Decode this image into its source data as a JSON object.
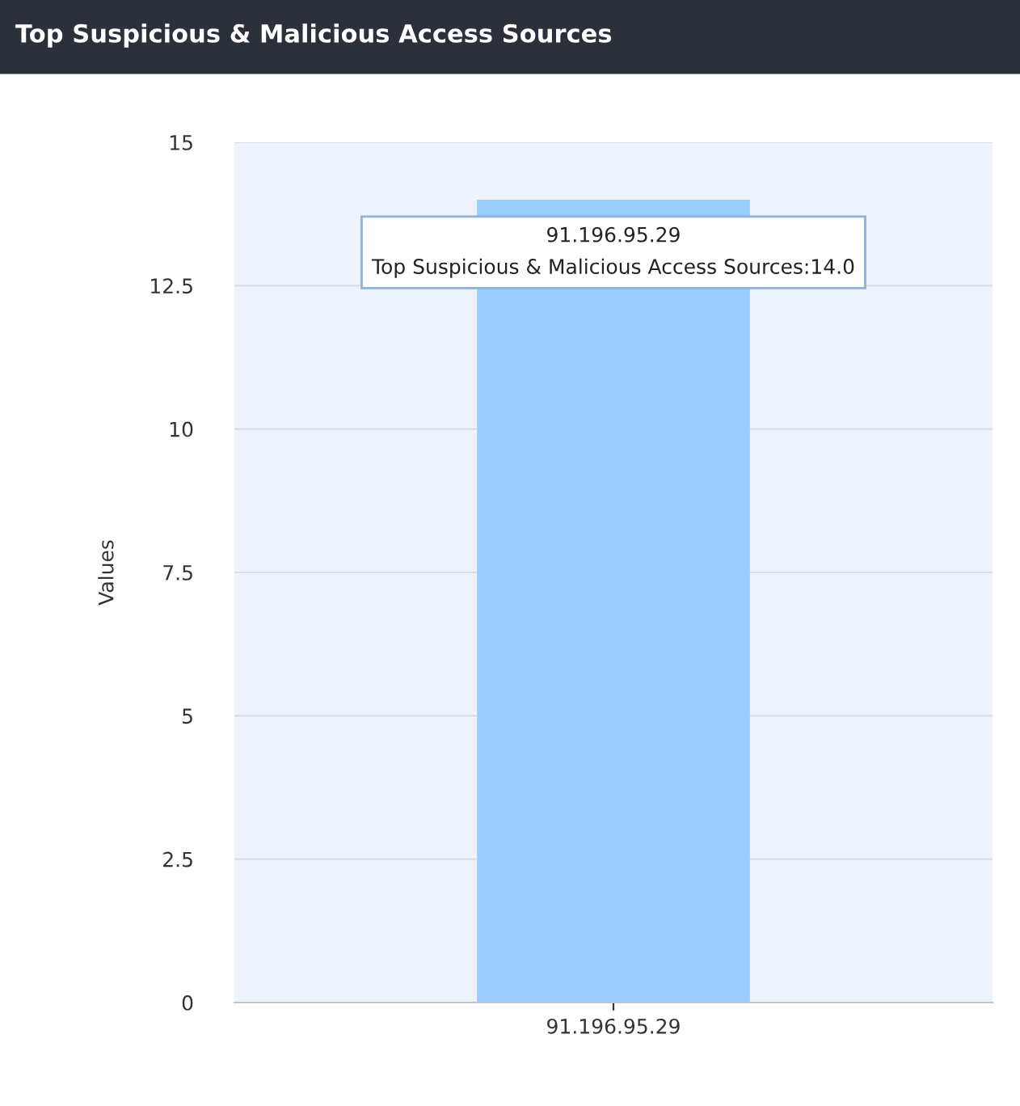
{
  "chart_data": {
    "type": "bar",
    "title": "Top Suspicious & Malicious Access Sources",
    "ylabel": "Values",
    "categories": [
      "91.196.95.29"
    ],
    "values": [
      14.0
    ],
    "color": "#99ccff",
    "ylim": [
      0,
      15
    ],
    "yticks": [
      0,
      2.5,
      5,
      7.5,
      10,
      12.5,
      15
    ],
    "grid": "y",
    "annotations": [
      {
        "text": "91.196.95.29\nTop Suspicious & Malicious Access Sources:14.0",
        "x": "91.196.95.29",
        "y": 14.0
      }
    ]
  }
}
